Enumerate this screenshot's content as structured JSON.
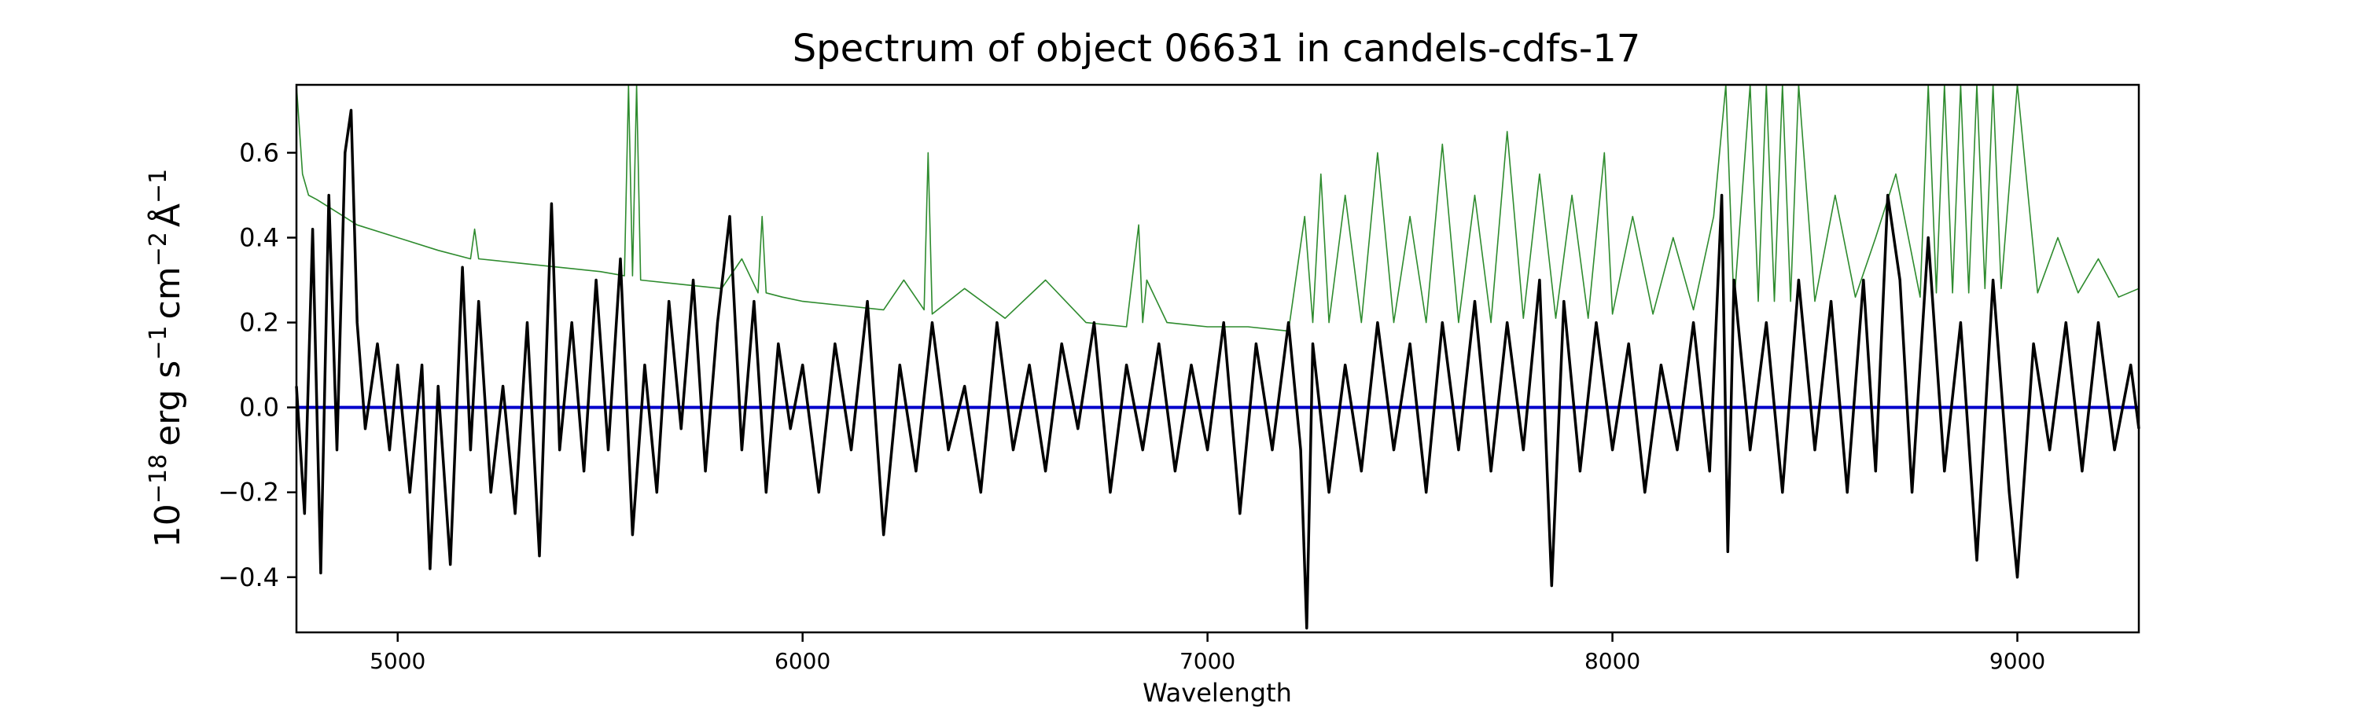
{
  "chart_data": {
    "type": "line",
    "title": "Spectrum of object 06631 in candels-cdfs-17",
    "xlabel": "Wavelength",
    "ylabel": {
      "base": "10",
      "base_exp": "−18",
      "erg": "erg s",
      "s_exp": "−1",
      "cm": "cm",
      "cm_exp": "−2",
      "ang": "Å",
      "ang_exp": "−1"
    },
    "xlim": [
      4750,
      9300
    ],
    "ylim": [
      -0.53,
      0.76
    ],
    "x_ticks": [
      5000,
      6000,
      7000,
      8000,
      9000
    ],
    "x_tick_labels": [
      "5000",
      "6000",
      "7000",
      "8000",
      "9000"
    ],
    "y_ticks": [
      -0.4,
      -0.2,
      0.0,
      0.2,
      0.4,
      0.6
    ],
    "y_tick_labels": [
      "−0.4",
      "−0.2",
      "0.0",
      "0.2",
      "0.4",
      "0.6"
    ],
    "grid": false,
    "legend": "none",
    "series": [
      {
        "color": "#000000",
        "x": [
          4750,
          4770,
          4790,
          4810,
          4830,
          4850,
          4870,
          4885,
          4900,
          4920,
          4950,
          4980,
          5000,
          5030,
          5060,
          5080,
          5100,
          5130,
          5160,
          5180,
          5200,
          5230,
          5260,
          5290,
          5320,
          5350,
          5380,
          5400,
          5430,
          5460,
          5490,
          5520,
          5550,
          5580,
          5610,
          5640,
          5670,
          5700,
          5730,
          5760,
          5790,
          5820,
          5850,
          5880,
          5910,
          5940,
          5970,
          6000,
          6040,
          6080,
          6120,
          6160,
          6200,
          6240,
          6280,
          6320,
          6360,
          6400,
          6440,
          6480,
          6520,
          6560,
          6600,
          6640,
          6680,
          6720,
          6760,
          6800,
          6840,
          6880,
          6920,
          6960,
          7000,
          7040,
          7080,
          7120,
          7160,
          7200,
          7230,
          7245,
          7260,
          7300,
          7340,
          7380,
          7420,
          7460,
          7500,
          7540,
          7580,
          7620,
          7660,
          7700,
          7740,
          7780,
          7820,
          7850,
          7880,
          7920,
          7960,
          8000,
          8040,
          8080,
          8120,
          8160,
          8200,
          8240,
          8270,
          8285,
          8300,
          8340,
          8380,
          8420,
          8460,
          8500,
          8540,
          8580,
          8620,
          8650,
          8680,
          8710,
          8740,
          8780,
          8820,
          8860,
          8900,
          8940,
          8980,
          9000,
          9040,
          9080,
          9120,
          9160,
          9200,
          9240,
          9280,
          9300
        ],
        "y": [
          0.05,
          -0.25,
          0.42,
          -0.39,
          0.5,
          -0.1,
          0.6,
          0.7,
          0.2,
          -0.05,
          0.15,
          -0.1,
          0.1,
          -0.2,
          0.1,
          -0.38,
          0.05,
          -0.37,
          0.33,
          -0.1,
          0.25,
          -0.2,
          0.05,
          -0.25,
          0.2,
          -0.35,
          0.48,
          -0.1,
          0.2,
          -0.15,
          0.3,
          -0.1,
          0.35,
          -0.3,
          0.1,
          -0.2,
          0.25,
          -0.05,
          0.3,
          -0.15,
          0.2,
          0.45,
          -0.1,
          0.25,
          -0.2,
          0.15,
          -0.05,
          0.1,
          -0.2,
          0.15,
          -0.1,
          0.25,
          -0.3,
          0.1,
          -0.15,
          0.2,
          -0.1,
          0.05,
          -0.2,
          0.2,
          -0.1,
          0.1,
          -0.15,
          0.15,
          -0.05,
          0.2,
          -0.2,
          0.1,
          -0.1,
          0.15,
          -0.15,
          0.1,
          -0.1,
          0.2,
          -0.25,
          0.15,
          -0.1,
          0.2,
          -0.1,
          -0.52,
          0.15,
          -0.2,
          0.1,
          -0.15,
          0.2,
          -0.1,
          0.15,
          -0.2,
          0.2,
          -0.1,
          0.25,
          -0.15,
          0.2,
          -0.1,
          0.3,
          -0.42,
          0.25,
          -0.15,
          0.2,
          -0.1,
          0.15,
          -0.2,
          0.1,
          -0.1,
          0.2,
          -0.15,
          0.5,
          -0.34,
          0.3,
          -0.1,
          0.2,
          -0.2,
          0.3,
          -0.1,
          0.25,
          -0.2,
          0.3,
          -0.15,
          0.5,
          0.3,
          -0.2,
          0.4,
          -0.15,
          0.2,
          -0.36,
          0.3,
          -0.2,
          -0.4,
          0.15,
          -0.1,
          0.2,
          -0.15,
          0.2,
          -0.1,
          0.1,
          -0.05
        ]
      },
      {
        "color": "#2e8b2e",
        "x": [
          4750,
          4765,
          4780,
          4800,
          4850,
          4900,
          5000,
          5100,
          5180,
          5190,
          5200,
          5300,
          5400,
          5500,
          5560,
          5570,
          5580,
          5590,
          5600,
          5700,
          5800,
          5850,
          5890,
          5900,
          5910,
          5950,
          6000,
          6100,
          6200,
          6250,
          6300,
          6310,
          6320,
          6400,
          6500,
          6600,
          6700,
          6800,
          6830,
          6840,
          6850,
          6900,
          7000,
          7100,
          7200,
          7240,
          7260,
          7280,
          7300,
          7340,
          7380,
          7420,
          7460,
          7500,
          7540,
          7580,
          7620,
          7660,
          7700,
          7740,
          7780,
          7820,
          7860,
          7900,
          7940,
          7980,
          8000,
          8050,
          8100,
          8150,
          8200,
          8250,
          8280,
          8300,
          8340,
          8360,
          8380,
          8400,
          8420,
          8440,
          8460,
          8500,
          8550,
          8600,
          8650,
          8700,
          8760,
          8780,
          8800,
          8820,
          8840,
          8860,
          8880,
          8900,
          8920,
          8940,
          8960,
          9000,
          9050,
          9100,
          9150,
          9200,
          9250,
          9300
        ],
        "y": [
          0.76,
          0.55,
          0.5,
          0.49,
          0.46,
          0.43,
          0.4,
          0.37,
          0.35,
          0.42,
          0.35,
          0.34,
          0.33,
          0.32,
          0.31,
          0.76,
          0.31,
          0.76,
          0.3,
          0.29,
          0.28,
          0.35,
          0.27,
          0.45,
          0.27,
          0.26,
          0.25,
          0.24,
          0.23,
          0.3,
          0.23,
          0.6,
          0.22,
          0.28,
          0.21,
          0.3,
          0.2,
          0.19,
          0.43,
          0.2,
          0.3,
          0.2,
          0.19,
          0.19,
          0.18,
          0.45,
          0.2,
          0.55,
          0.2,
          0.5,
          0.2,
          0.6,
          0.2,
          0.45,
          0.2,
          0.62,
          0.2,
          0.5,
          0.2,
          0.65,
          0.21,
          0.55,
          0.21,
          0.5,
          0.21,
          0.6,
          0.22,
          0.45,
          0.22,
          0.4,
          0.23,
          0.45,
          0.76,
          0.24,
          0.76,
          0.25,
          0.76,
          0.25,
          0.76,
          0.25,
          0.76,
          0.25,
          0.5,
          0.26,
          0.4,
          0.55,
          0.26,
          0.76,
          0.27,
          0.76,
          0.27,
          0.76,
          0.27,
          0.76,
          0.28,
          0.76,
          0.28,
          0.76,
          0.27,
          0.4,
          0.27,
          0.35,
          0.26,
          0.28
        ]
      },
      {
        "color": "#0000cc",
        "x": [
          4750,
          9300
        ],
        "y": [
          0.0,
          0.0
        ]
      }
    ]
  }
}
